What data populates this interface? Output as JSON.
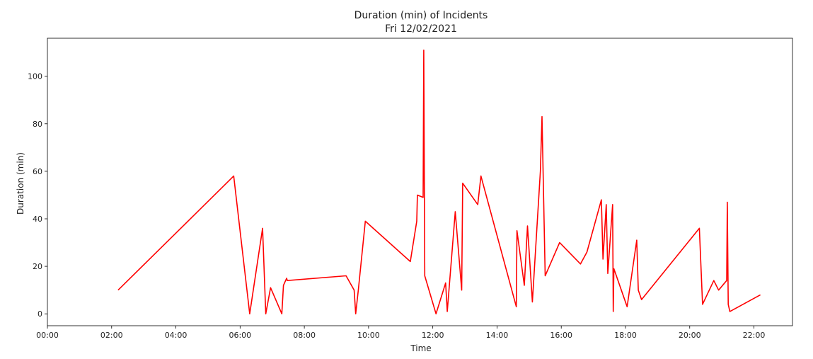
{
  "chart_data": {
    "type": "line",
    "title": "Duration (min) of Incidents",
    "subtitle": "Fri 12/02/2021",
    "xlabel": "Time",
    "ylabel": "Duration (min)",
    "x_unit": "hours",
    "xlim": [
      0,
      23.2
    ],
    "ylim": [
      -5,
      116
    ],
    "x_ticks": [
      {
        "value": 0,
        "label": "00:00"
      },
      {
        "value": 2,
        "label": "02:00"
      },
      {
        "value": 4,
        "label": "04:00"
      },
      {
        "value": 6,
        "label": "06:00"
      },
      {
        "value": 8,
        "label": "08:00"
      },
      {
        "value": 10,
        "label": "10:00"
      },
      {
        "value": 12,
        "label": "12:00"
      },
      {
        "value": 14,
        "label": "14:00"
      },
      {
        "value": 16,
        "label": "16:00"
      },
      {
        "value": 18,
        "label": "18:00"
      },
      {
        "value": 20,
        "label": "20:00"
      },
      {
        "value": 22,
        "label": "22:00"
      }
    ],
    "y_ticks": [
      {
        "value": 0,
        "label": "0"
      },
      {
        "value": 20,
        "label": "20"
      },
      {
        "value": 40,
        "label": "40"
      },
      {
        "value": 60,
        "label": "60"
      },
      {
        "value": 80,
        "label": "80"
      },
      {
        "value": 100,
        "label": "100"
      }
    ],
    "grid": false,
    "series": [
      {
        "color": "#ff0000",
        "points": [
          [
            2.2,
            10
          ],
          [
            5.8,
            58
          ],
          [
            6.3,
            0
          ],
          [
            6.7,
            36
          ],
          [
            6.8,
            0
          ],
          [
            6.95,
            11
          ],
          [
            7.3,
            0
          ],
          [
            7.35,
            12
          ],
          [
            7.45,
            15
          ],
          [
            7.47,
            14
          ],
          [
            9.3,
            16
          ],
          [
            9.55,
            10
          ],
          [
            9.6,
            0
          ],
          [
            9.68,
            10
          ],
          [
            9.9,
            39
          ],
          [
            11.3,
            22
          ],
          [
            11.5,
            39
          ],
          [
            11.52,
            50
          ],
          [
            11.7,
            49
          ],
          [
            11.72,
            111
          ],
          [
            11.75,
            16
          ],
          [
            12.1,
            0
          ],
          [
            12.4,
            13
          ],
          [
            12.45,
            1
          ],
          [
            12.7,
            43
          ],
          [
            12.9,
            10
          ],
          [
            12.93,
            55
          ],
          [
            13.4,
            46
          ],
          [
            13.5,
            58
          ],
          [
            14.6,
            3
          ],
          [
            14.62,
            35
          ],
          [
            14.85,
            12
          ],
          [
            14.95,
            37
          ],
          [
            15.1,
            5
          ],
          [
            15.35,
            60
          ],
          [
            15.4,
            83
          ],
          [
            15.5,
            16
          ],
          [
            15.95,
            30
          ],
          [
            16.6,
            21
          ],
          [
            16.8,
            26
          ],
          [
            17.25,
            48
          ],
          [
            17.3,
            23
          ],
          [
            17.4,
            46
          ],
          [
            17.45,
            17
          ],
          [
            17.6,
            46
          ],
          [
            17.62,
            1
          ],
          [
            17.64,
            19
          ],
          [
            18.05,
            3
          ],
          [
            18.35,
            31
          ],
          [
            18.4,
            10
          ],
          [
            18.5,
            6
          ],
          [
            20.3,
            36
          ],
          [
            20.4,
            4
          ],
          [
            20.75,
            14
          ],
          [
            20.9,
            10
          ],
          [
            21.15,
            14
          ],
          [
            21.17,
            47
          ],
          [
            21.2,
            4
          ],
          [
            21.25,
            1
          ],
          [
            22.2,
            8
          ]
        ]
      }
    ]
  }
}
